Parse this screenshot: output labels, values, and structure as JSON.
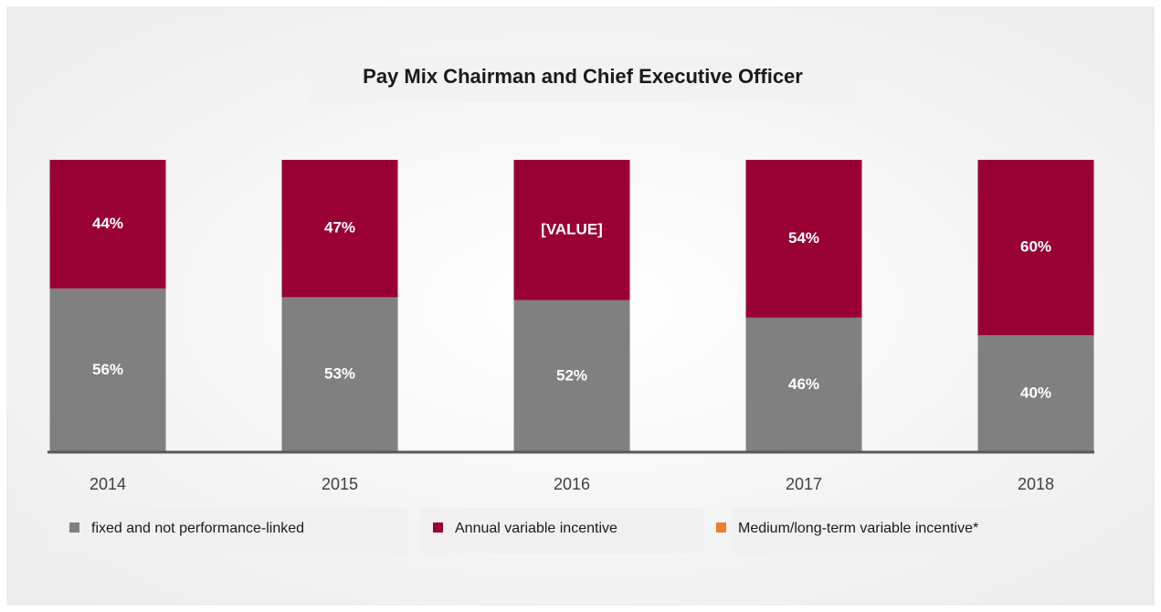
{
  "chart_data": {
    "type": "bar",
    "stacked": true,
    "title": "Pay Mix Chairman and Chief Executive Officer",
    "categories": [
      "2014",
      "2015",
      "2016",
      "2017",
      "2018"
    ],
    "ylim": [
      0,
      100
    ],
    "series": [
      {
        "name": "fixed and not performance-linked",
        "color": "#808080",
        "values": [
          56,
          53,
          52,
          46,
          40
        ],
        "value_labels": [
          "56%",
          "53%",
          "52%",
          "46%",
          "40%"
        ]
      },
      {
        "name": "Annual variable incentive",
        "color": "#990033",
        "values": [
          44,
          47,
          48,
          54,
          60
        ],
        "value_labels": [
          "44%",
          "47%",
          "[VALUE]",
          "54%",
          "60%"
        ]
      },
      {
        "name": "Medium/long-term variable incentive*",
        "color": "#ed7d31",
        "values": [
          0,
          0,
          0,
          0,
          0
        ]
      }
    ]
  }
}
